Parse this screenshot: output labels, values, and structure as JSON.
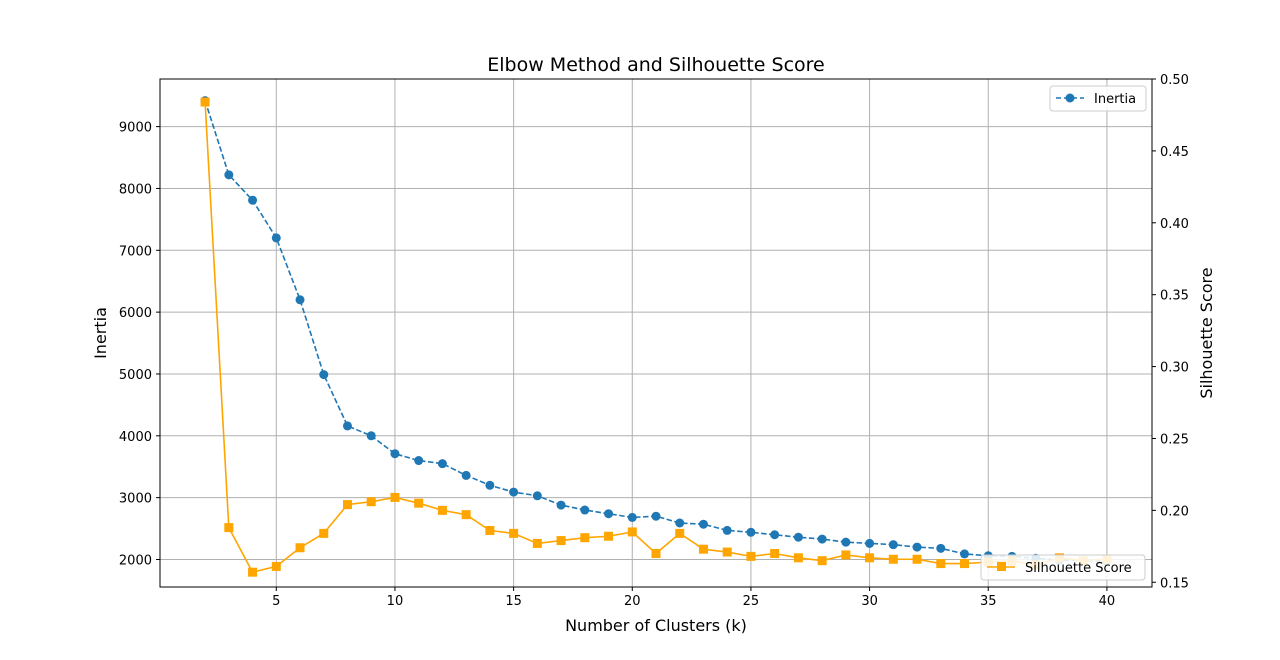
{
  "chart_data": {
    "type": "line",
    "title": "Elbow Method and Silhouette Score",
    "xlabel": "Number of Clusters (k)",
    "ylabel_left": "Inertia",
    "ylabel_right": "Silhouette Score",
    "xlim": [
      0.1,
      41.9
    ],
    "ylim_left": [
      1555,
      9770
    ],
    "ylim_right": [
      0.1467,
      0.5
    ],
    "x_ticks": [
      "5",
      "10",
      "15",
      "20",
      "25",
      "30",
      "35",
      "40"
    ],
    "y_left_ticks": [
      "2000",
      "3000",
      "4000",
      "5000",
      "6000",
      "7000",
      "8000",
      "9000"
    ],
    "y_right_ticks": [
      "0.15",
      "0.20",
      "0.25",
      "0.30",
      "0.35",
      "0.40",
      "0.45",
      "0.50"
    ],
    "grid": true,
    "series": [
      {
        "name": "Inertia",
        "axis": "left",
        "color": "#1f77b4",
        "linestyle": "dashed",
        "marker": "circle",
        "legend_position": "top-right",
        "x": [
          2,
          3,
          4,
          5,
          6,
          7,
          8,
          9,
          10,
          11,
          12,
          13,
          14,
          15,
          16,
          17,
          18,
          19,
          20,
          21,
          22,
          23,
          24,
          25,
          26,
          27,
          28,
          29,
          30,
          31,
          32,
          33,
          34,
          35,
          36,
          37,
          38,
          39,
          40
        ],
        "values": [
          9420,
          8220,
          7810,
          7200,
          6200,
          4990,
          4160,
          4000,
          3710,
          3600,
          3550,
          3360,
          3200,
          3090,
          3030,
          2880,
          2800,
          2740,
          2680,
          2700,
          2590,
          2570,
          2470,
          2440,
          2400,
          2360,
          2330,
          2280,
          2260,
          2240,
          2200,
          2180,
          2090,
          2060,
          2050,
          2020,
          1990,
          1980,
          1970
        ]
      },
      {
        "name": "Silhouette Score",
        "axis": "right",
        "color": "#ffa500",
        "linestyle": "solid",
        "marker": "square",
        "legend_position": "bottom-right",
        "x": [
          2,
          3,
          4,
          5,
          6,
          7,
          8,
          9,
          10,
          11,
          12,
          13,
          14,
          15,
          16,
          17,
          18,
          19,
          20,
          21,
          22,
          23,
          24,
          25,
          26,
          27,
          28,
          29,
          30,
          31,
          32,
          33,
          34,
          35,
          36,
          37,
          38,
          39,
          40
        ],
        "values": [
          0.484,
          0.188,
          0.157,
          0.161,
          0.174,
          0.184,
          0.204,
          0.206,
          0.209,
          0.205,
          0.2,
          0.197,
          0.186,
          0.184,
          0.177,
          0.179,
          0.181,
          0.182,
          0.185,
          0.17,
          0.184,
          0.173,
          0.171,
          0.168,
          0.17,
          0.167,
          0.165,
          0.169,
          0.167,
          0.166,
          0.166,
          0.163,
          0.163,
          0.164,
          0.165,
          0.162,
          0.167,
          0.165,
          0.166
        ]
      }
    ]
  }
}
